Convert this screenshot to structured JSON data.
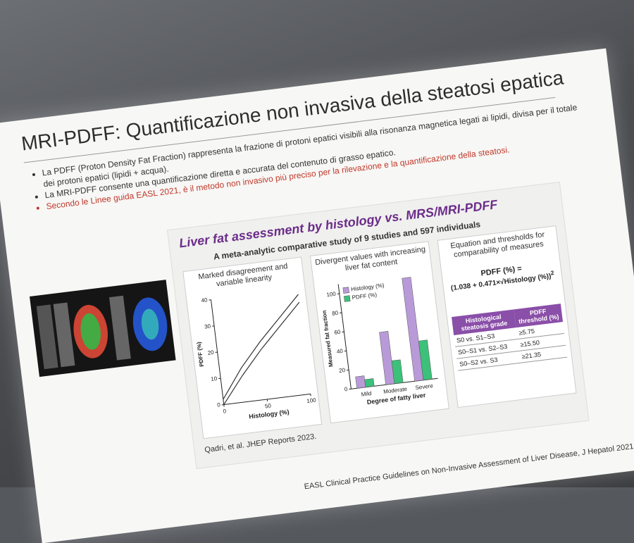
{
  "slide": {
    "title": "MRI-PDFF: Quantificazione non invasiva della steatosi epatica",
    "bullets": [
      "La PDFF (Proton Density Fat Fraction) rappresenta la frazione di protoni epatici visibili alla risonanza magnetica legati ai lipidi, divisa per il totale dei protoni epatici (lipidi + acqua).",
      "La MRI-PDFF consente una quantificazione diretta e accurata del contenuto di grasso epatico.",
      "Secondo le Linee guida EASL 2021, è il metodo non invasivo più preciso per la rilevazione e la quantificazione della steatosi."
    ],
    "footer": "EASL Clinical Practice Guidelines on Non-Invasive Assessment of Liver Disease, J Hepatol 2021"
  },
  "figure": {
    "title": "Liver fat assessment by histology vs. MRS/MRI-PDFF",
    "subtitle": "A meta-analytic comparative study of 9 studies and 597 individuals",
    "citation": "Qadri, et al. JHEP Reports 2023.",
    "panels": [
      {
        "heading": "Marked disagreement and variable linearity",
        "chart": {
          "type": "line",
          "xlabel": "Histology (%)",
          "ylabel": "PDFF (%)",
          "xlim": [
            0,
            100
          ],
          "ylim": [
            0,
            40
          ],
          "xticks": [
            0,
            50,
            100
          ],
          "yticks": [
            0,
            10,
            20,
            30,
            40
          ],
          "x": [
            0,
            25,
            50,
            75,
            100
          ],
          "series": [
            {
              "color": "#333333",
              "values": [
                2,
                13,
                22,
                30,
                38
              ]
            },
            {
              "color": "#333333",
              "values": [
                0,
                10,
                19,
                27,
                35
              ]
            }
          ]
        }
      },
      {
        "heading": "Divergent values with increasing liver fat content",
        "chart": {
          "type": "bar",
          "xlabel": "Degree of fatty liver",
          "ylabel": "Measured fat fraction",
          "categories": [
            "Mild",
            "Moderate",
            "Severe"
          ],
          "ylim": [
            0,
            110
          ],
          "yticks": [
            0,
            20,
            40,
            60,
            80,
            100
          ],
          "legend": "top-left",
          "series": [
            {
              "name": "Histology (%)",
              "color": "#b99ad8",
              "values": [
                12,
                55,
                108
              ]
            },
            {
              "name": "PDFF (%)",
              "color": "#3cc07a",
              "values": [
                8,
                24,
                41
              ]
            }
          ]
        }
      },
      {
        "heading": "Equation and thresholds for comparability of measures",
        "equation": {
          "lhs": "PDFF (%) =",
          "rhs": "(1.038 + 0.471×√Histology (%))",
          "exponent": "2"
        },
        "table": {
          "header": [
            "Histological steatosis grade",
            "PDFF threshold (%)"
          ],
          "rows": [
            [
              "S0 vs. S1–S3",
              "≥5.75"
            ],
            [
              "S0–S1 vs. S2–S3",
              "≥15.50"
            ],
            [
              "S0–S2 vs. S3",
              "≥21.35"
            ]
          ]
        }
      }
    ]
  }
}
